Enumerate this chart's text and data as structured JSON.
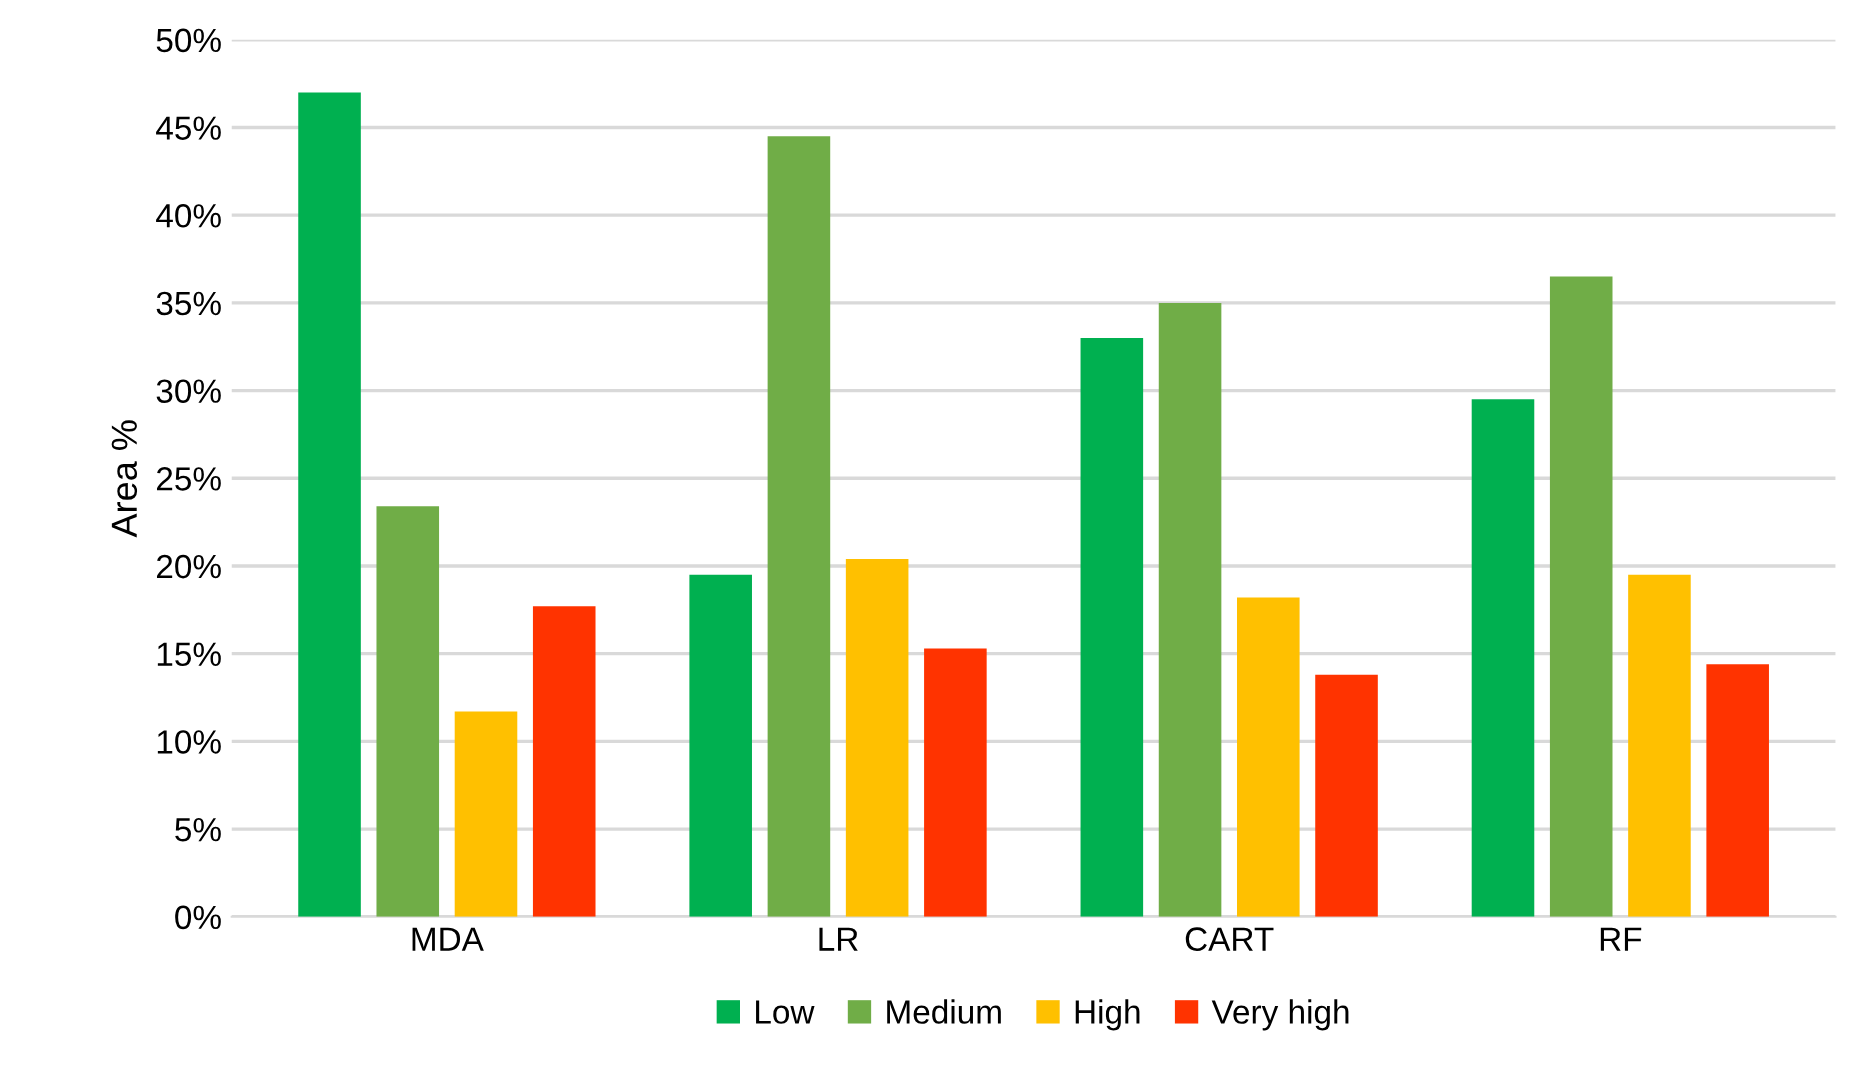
{
  "chart_data": {
    "type": "bar",
    "ylabel": "Area %",
    "categories": [
      "MDA",
      "LR",
      "CART",
      "RF"
    ],
    "series": [
      {
        "name": "Low",
        "color": "#00b050",
        "values": [
          47.0,
          19.5,
          33.0,
          29.5
        ]
      },
      {
        "name": "Medium",
        "color": "#70ad47",
        "values": [
          23.4,
          44.5,
          35.0,
          36.5
        ]
      },
      {
        "name": "High",
        "color": "#ffc000",
        "values": [
          11.7,
          20.4,
          18.2,
          19.5
        ]
      },
      {
        "name": "Very high",
        "color": "#ff3300",
        "values": [
          17.7,
          15.3,
          13.8,
          14.4
        ]
      }
    ],
    "ylim": [
      0,
      50
    ],
    "yticks": [
      {
        "value": 0,
        "label": "0%"
      },
      {
        "value": 5,
        "label": "5%"
      },
      {
        "value": 10,
        "label": "10%"
      },
      {
        "value": 15,
        "label": "15%"
      },
      {
        "value": 20,
        "label": "20%"
      },
      {
        "value": 25,
        "label": "25%"
      },
      {
        "value": 30,
        "label": "30%"
      },
      {
        "value": 35,
        "label": "35%"
      },
      {
        "value": 40,
        "label": "40%"
      },
      {
        "value": 45,
        "label": "45%"
      },
      {
        "value": 50,
        "label": "50%"
      }
    ],
    "grid": "y",
    "legend": "bottom"
  }
}
